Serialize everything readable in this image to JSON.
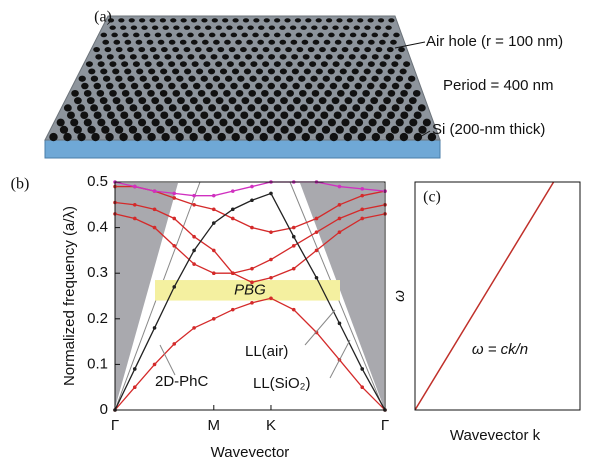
{
  "panel_a": {
    "label": "(a)",
    "annotations": [
      "Air hole (r = 100 nm)",
      "Period = 400 nm",
      "Si (200-nm thick)"
    ]
  },
  "chart_data": [
    {
      "type": "line",
      "panel_label": "(b)",
      "x_label": "Wavevector",
      "y_label": "Normalized frequency (a/λ)",
      "x": [
        0,
        0.1155,
        0.231,
        0.346,
        0.462,
        0.577,
        0.688,
        0.8,
        0.911,
        1.044,
        1.177,
        1.311,
        1.444,
        1.577
      ],
      "xlim": [
        0,
        1.577
      ],
      "xticks": [
        {
          "value": 0,
          "label": "Γ"
        },
        {
          "value": 0.577,
          "label": "M"
        },
        {
          "value": 0.911,
          "label": "K"
        },
        {
          "value": 1.577,
          "label": "Γ"
        }
      ],
      "ylim": [
        0,
        0.5
      ],
      "yticks": [
        0,
        0.1,
        0.2,
        0.3,
        0.4,
        0.5
      ],
      "series": [
        {
          "color": "#d42a2a",
          "values": [
            0,
            0.05,
            0.1,
            0.145,
            0.18,
            0.2,
            0.22,
            0.235,
            0.245,
            0.22,
            0.17,
            0.11,
            0.05,
            0
          ]
        },
        {
          "color": "#d42a2a",
          "values": [
            0.43,
            0.42,
            0.4,
            0.36,
            0.32,
            0.3,
            0.3,
            0.31,
            0.33,
            0.36,
            0.39,
            0.42,
            0.44,
            0.45
          ]
        },
        {
          "color": "#d42a2a",
          "values": [
            0.455,
            0.45,
            0.44,
            0.42,
            0.38,
            0.35,
            0.3,
            0.28,
            0.29,
            0.31,
            0.35,
            0.39,
            0.42,
            0.43
          ]
        },
        {
          "color": "#d42a2a",
          "values": [
            0.49,
            0.49,
            0.48,
            0.465,
            0.45,
            0.44,
            0.42,
            0.4,
            0.39,
            0.4,
            0.42,
            0.45,
            0.47,
            0.48
          ]
        },
        {
          "color": "#d030c0",
          "values": [
            0.5,
            0.49,
            0.48,
            0.475,
            0.47,
            0.47,
            0.48,
            0.49,
            0.5,
            0.5,
            0.5,
            0.49,
            0.485,
            0.48
          ]
        },
        {
          "color": "#222222",
          "values": [
            0,
            0.09,
            0.18,
            0.27,
            0.35,
            0.41,
            0.44,
            0.46,
            0.475,
            0.38,
            0.29,
            0.19,
            0.09,
            0
          ]
        }
      ],
      "band_gap": {
        "label": "PBG",
        "range": [
          0.24,
          0.285
        ],
        "color": "#f4f0a0"
      },
      "annotations": [
        {
          "text": "2D-PhC",
          "color": "#d42a2a"
        },
        {
          "text": "LL(air)",
          "color": "#111111"
        },
        {
          "text": "LL(SiO₂)",
          "color": "#111111"
        }
      ]
    },
    {
      "type": "line",
      "panel_label": "(c)",
      "x_label": "Wavevector k",
      "y_label": "ω",
      "annotation": "ω = ck/n",
      "x": [
        0,
        0.84
      ],
      "xlim": [
        0,
        1
      ],
      "ylim": [
        0,
        1
      ],
      "series": [
        {
          "color": "#c0302a",
          "values": [
            0,
            1
          ]
        }
      ]
    }
  ]
}
